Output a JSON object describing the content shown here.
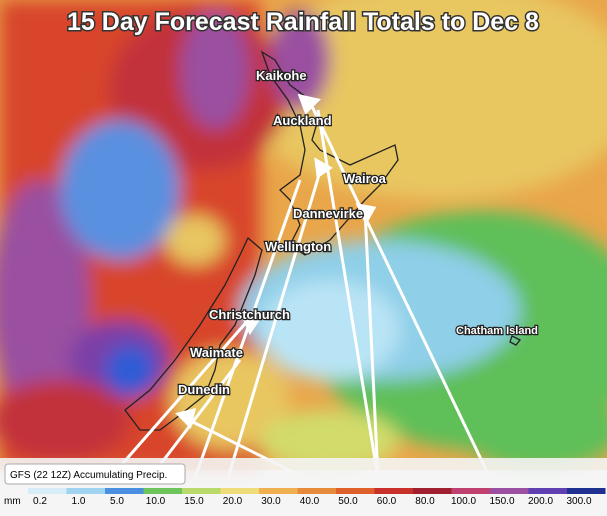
{
  "title": "15 Day Forecast Rainfall Totals to Dec 8",
  "places": [
    {
      "label": "Kaikohe"
    },
    {
      "label": "Auckland"
    },
    {
      "label": "Wairoa"
    },
    {
      "label": "Dannevirke"
    },
    {
      "label": "Wellington"
    },
    {
      "label": "Christchurch"
    },
    {
      "label": "Waimate"
    },
    {
      "label": "Dunedin"
    },
    {
      "label": "Chatham Island"
    }
  ],
  "legend": {
    "source": "GFS (22 12Z) Accumulating Precip.",
    "unit": "mm",
    "ticks": [
      "0.2",
      "1.0",
      "5.0",
      "10.0",
      "15.0",
      "20.0",
      "30.0",
      "40.0",
      "50.0",
      "60.0",
      "80.0",
      "100.0",
      "150.0",
      "200.0",
      "300.0"
    ]
  }
}
